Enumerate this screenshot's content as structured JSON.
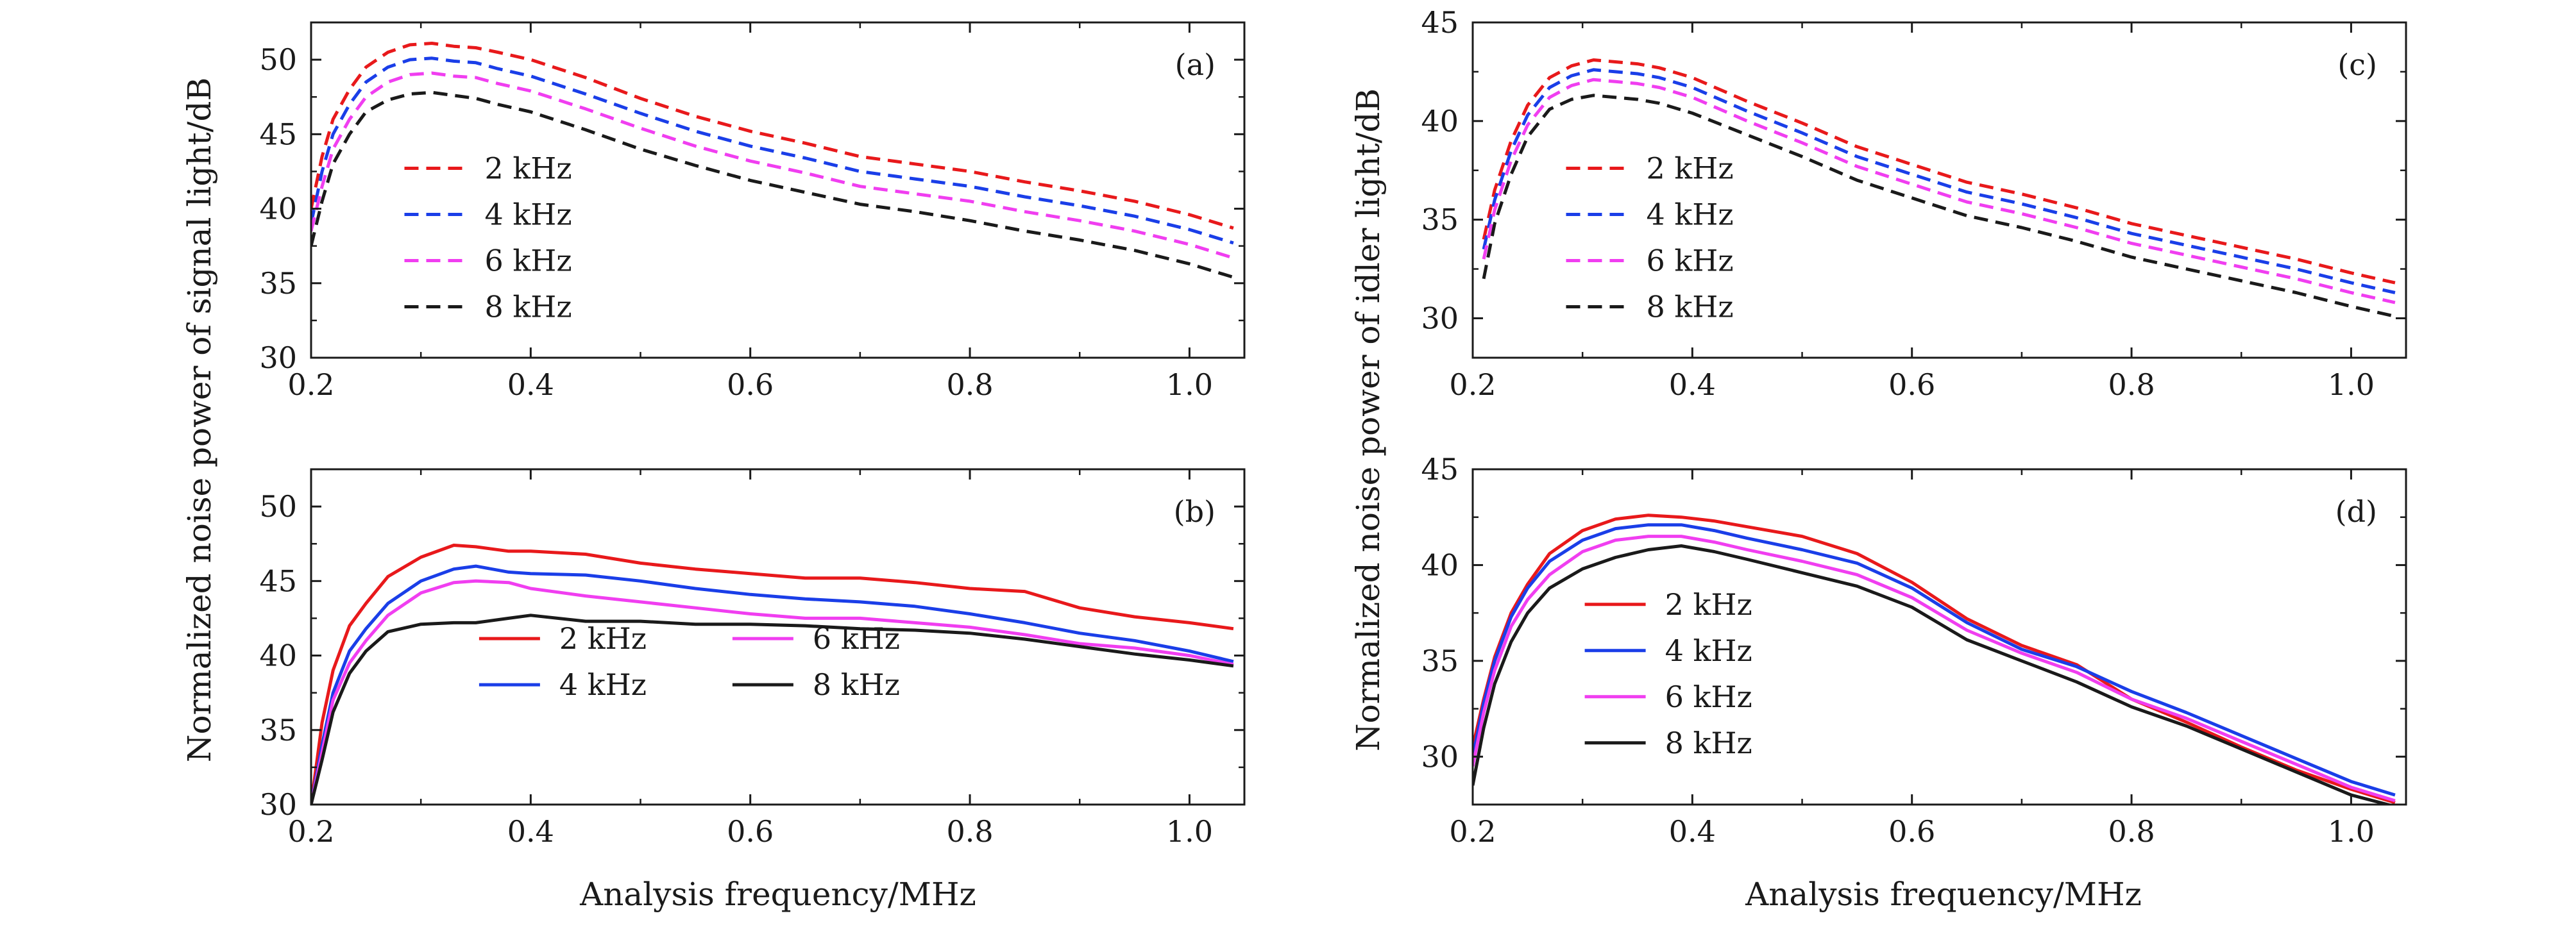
{
  "figure": {
    "ylabel_left": "Normalized noise power of signal light/dB",
    "ylabel_right": "Normalized noise power of idler light/dB",
    "xlabel_bottom_left": "Analysis frequency/MHz",
    "xlabel_bottom_right": "Analysis frequency/MHz"
  },
  "chart_data": [
    {
      "id": "a",
      "type": "line",
      "panel_label": "(a)",
      "line_style": "dashed",
      "xlim": [
        0.2,
        1.05
      ],
      "ylim": [
        30,
        52.5
      ],
      "xticks": [
        0.2,
        0.4,
        0.6,
        0.8,
        1.0
      ],
      "xtick_labels": [
        "0.2",
        "0.4",
        "0.6",
        "0.8",
        "1.0"
      ],
      "yticks": [
        30,
        35,
        40,
        45,
        50
      ],
      "ytick_labels": [
        "30",
        "35",
        "40",
        "45",
        "50"
      ],
      "legend_placement": "center-left",
      "x": [
        0.2,
        0.21,
        0.22,
        0.235,
        0.25,
        0.27,
        0.29,
        0.31,
        0.33,
        0.35,
        0.37,
        0.4,
        0.45,
        0.5,
        0.55,
        0.6,
        0.65,
        0.7,
        0.75,
        0.8,
        0.85,
        0.9,
        0.95,
        1.0,
        1.04
      ],
      "series": [
        {
          "name": "2 kHz",
          "color": "#e8191b",
          "values": [
            40,
            43.5,
            46,
            48,
            49.5,
            50.5,
            51,
            51.1,
            50.9,
            50.8,
            50.5,
            50.0,
            48.8,
            47.4,
            46.2,
            45.2,
            44.4,
            43.5,
            43.0,
            42.5,
            41.8,
            41.2,
            40.5,
            39.6,
            38.7
          ]
        },
        {
          "name": "4 kHz",
          "color": "#1a3ee8",
          "values": [
            39,
            42.5,
            45,
            47,
            48.5,
            49.5,
            50,
            50.1,
            49.9,
            49.8,
            49.4,
            48.9,
            47.7,
            46.4,
            45.2,
            44.2,
            43.4,
            42.5,
            42.0,
            41.5,
            40.8,
            40.2,
            39.5,
            38.6,
            37.7
          ]
        },
        {
          "name": "6 kHz",
          "color": "#f03ef0",
          "values": [
            38.5,
            41.5,
            44,
            46,
            47.5,
            48.5,
            49,
            49.1,
            48.9,
            48.8,
            48.4,
            47.9,
            46.7,
            45.4,
            44.2,
            43.2,
            42.4,
            41.5,
            41.0,
            40.5,
            39.8,
            39.2,
            38.5,
            37.6,
            36.7
          ]
        },
        {
          "name": "8 kHz",
          "color": "#1a1a1a",
          "values": [
            37.5,
            40.5,
            43,
            45,
            46.5,
            47.3,
            47.7,
            47.8,
            47.6,
            47.4,
            47.0,
            46.5,
            45.3,
            44.0,
            42.9,
            41.9,
            41.1,
            40.3,
            39.8,
            39.2,
            38.5,
            37.9,
            37.2,
            36.3,
            35.4
          ]
        }
      ]
    },
    {
      "id": "b",
      "type": "line",
      "panel_label": "(b)",
      "line_style": "solid",
      "xlim": [
        0.2,
        1.05
      ],
      "ylim": [
        30,
        52.5
      ],
      "xticks": [
        0.2,
        0.4,
        0.6,
        0.8,
        1.0
      ],
      "xtick_labels": [
        "0.2",
        "0.4",
        "0.6",
        "0.8",
        "1.0"
      ],
      "yticks": [
        30,
        35,
        40,
        45,
        50
      ],
      "ytick_labels": [
        "30",
        "35",
        "40",
        "45",
        "50"
      ],
      "legend_placement": "bottom-center",
      "x": [
        0.2,
        0.21,
        0.22,
        0.235,
        0.25,
        0.27,
        0.3,
        0.33,
        0.35,
        0.38,
        0.4,
        0.45,
        0.5,
        0.55,
        0.6,
        0.65,
        0.7,
        0.75,
        0.8,
        0.85,
        0.9,
        0.95,
        1.0,
        1.04
      ],
      "series": [
        {
          "name": "2 kHz",
          "color": "#e8191b",
          "values": [
            30,
            35.5,
            39,
            42,
            43.5,
            45.3,
            46.6,
            47.4,
            47.3,
            47.0,
            47.0,
            46.8,
            46.2,
            45.8,
            45.5,
            45.2,
            45.2,
            44.9,
            44.5,
            44.3,
            43.2,
            42.6,
            42.2,
            41.8
          ]
        },
        {
          "name": "4 kHz",
          "color": "#1a3ee8",
          "values": [
            30,
            34,
            37.5,
            40.3,
            41.8,
            43.5,
            45,
            45.8,
            46.0,
            45.6,
            45.5,
            45.4,
            45.0,
            44.5,
            44.1,
            43.8,
            43.6,
            43.3,
            42.8,
            42.2,
            41.5,
            41.0,
            40.3,
            39.6
          ]
        },
        {
          "name": "6 kHz",
          "color": "#f03ef0",
          "values": [
            30,
            33.5,
            37,
            39.5,
            41,
            42.7,
            44.2,
            44.9,
            45.0,
            44.9,
            44.5,
            44.0,
            43.6,
            43.2,
            42.8,
            42.5,
            42.5,
            42.2,
            41.9,
            41.4,
            40.8,
            40.5,
            40.0,
            39.4
          ]
        },
        {
          "name": "8 kHz",
          "color": "#1a1a1a",
          "values": [
            30,
            33,
            36.2,
            38.8,
            40.3,
            41.6,
            42.1,
            42.2,
            42.2,
            42.5,
            42.7,
            42.3,
            42.3,
            42.1,
            42.1,
            42.0,
            41.8,
            41.7,
            41.5,
            41.1,
            40.6,
            40.1,
            39.7,
            39.3
          ]
        }
      ]
    },
    {
      "id": "c",
      "type": "line",
      "panel_label": "(c)",
      "line_style": "dashed",
      "xlim": [
        0.2,
        1.05
      ],
      "ylim": [
        28,
        45
      ],
      "xticks": [
        0.2,
        0.4,
        0.6,
        0.8,
        1.0
      ],
      "xtick_labels": [
        "0.2",
        "0.4",
        "0.6",
        "0.8",
        "1.0"
      ],
      "yticks": [
        30,
        35,
        40,
        45
      ],
      "ytick_labels": [
        "30",
        "35",
        "40",
        "45"
      ],
      "legend_placement": "center-left",
      "x": [
        0.21,
        0.22,
        0.235,
        0.25,
        0.27,
        0.29,
        0.31,
        0.33,
        0.35,
        0.37,
        0.4,
        0.45,
        0.5,
        0.55,
        0.6,
        0.65,
        0.7,
        0.75,
        0.8,
        0.85,
        0.9,
        0.95,
        1.0,
        1.04
      ],
      "series": [
        {
          "name": "2 kHz",
          "color": "#e8191b",
          "values": [
            34,
            36.5,
            39,
            40.8,
            42.2,
            42.8,
            43.1,
            43.0,
            42.9,
            42.7,
            42.2,
            41.0,
            39.9,
            38.7,
            37.8,
            36.9,
            36.3,
            35.6,
            34.8,
            34.2,
            33.6,
            33.0,
            32.3,
            31.8
          ]
        },
        {
          "name": "4 kHz",
          "color": "#1a3ee8",
          "values": [
            33.5,
            36,
            38.5,
            40.3,
            41.7,
            42.3,
            42.6,
            42.5,
            42.4,
            42.2,
            41.7,
            40.5,
            39.4,
            38.2,
            37.3,
            36.4,
            35.8,
            35.1,
            34.3,
            33.7,
            33.1,
            32.5,
            31.8,
            31.3
          ]
        },
        {
          "name": "6 kHz",
          "color": "#f03ef0",
          "values": [
            33,
            35.5,
            38,
            39.8,
            41.2,
            41.8,
            42.1,
            42.0,
            41.9,
            41.7,
            41.2,
            40.0,
            38.9,
            37.7,
            36.8,
            35.9,
            35.3,
            34.6,
            33.8,
            33.2,
            32.6,
            32.0,
            31.3,
            30.8
          ]
        },
        {
          "name": "8 kHz",
          "color": "#1a1a1a",
          "values": [
            32,
            34.8,
            37.3,
            39.2,
            40.6,
            41.1,
            41.3,
            41.2,
            41.1,
            40.9,
            40.4,
            39.3,
            38.2,
            37.0,
            36.1,
            35.2,
            34.6,
            33.9,
            33.1,
            32.5,
            31.9,
            31.3,
            30.6,
            30.1
          ]
        }
      ]
    },
    {
      "id": "d",
      "type": "line",
      "panel_label": "(d)",
      "line_style": "solid",
      "xlim": [
        0.2,
        1.05
      ],
      "ylim": [
        27.5,
        45
      ],
      "xticks": [
        0.2,
        0.4,
        0.6,
        0.8,
        1.0
      ],
      "xtick_labels": [
        "0.2",
        "0.4",
        "0.6",
        "0.8",
        "1.0"
      ],
      "yticks": [
        30,
        35,
        40,
        45
      ],
      "ytick_labels": [
        "30",
        "35",
        "40",
        "45"
      ],
      "legend_placement": "bottom-left",
      "x": [
        0.2,
        0.21,
        0.22,
        0.235,
        0.25,
        0.27,
        0.3,
        0.33,
        0.36,
        0.39,
        0.42,
        0.45,
        0.5,
        0.55,
        0.6,
        0.65,
        0.7,
        0.75,
        0.8,
        0.85,
        0.9,
        0.95,
        1.0,
        1.04
      ],
      "series": [
        {
          "name": "2 kHz",
          "color": "#e8191b",
          "values": [
            30.5,
            33,
            35.2,
            37.5,
            39.0,
            40.6,
            41.8,
            42.4,
            42.6,
            42.5,
            42.3,
            42.0,
            41.5,
            40.6,
            39.1,
            37.2,
            35.8,
            34.8,
            33.0,
            31.8,
            30.5,
            29.3,
            28.3,
            27.6
          ]
        },
        {
          "name": "4 kHz",
          "color": "#1a3ee8",
          "values": [
            30.0,
            32.8,
            35,
            37.3,
            38.8,
            40.2,
            41.3,
            41.9,
            42.1,
            42.1,
            41.8,
            41.4,
            40.8,
            40.1,
            38.8,
            37.0,
            35.6,
            34.7,
            33.4,
            32.3,
            31.1,
            29.9,
            28.7,
            28.0
          ]
        },
        {
          "name": "6 kHz",
          "color": "#f03ef0",
          "values": [
            29.5,
            32.3,
            34.5,
            36.8,
            38.2,
            39.5,
            40.7,
            41.3,
            41.5,
            41.5,
            41.2,
            40.8,
            40.2,
            39.5,
            38.3,
            36.6,
            35.4,
            34.4,
            33.0,
            32.0,
            30.8,
            29.6,
            28.4,
            27.7
          ]
        },
        {
          "name": "8 kHz",
          "color": "#1a1a1a",
          "values": [
            28.5,
            31.5,
            33.8,
            36.0,
            37.5,
            38.8,
            39.8,
            40.4,
            40.8,
            41.0,
            40.7,
            40.3,
            39.6,
            38.9,
            37.8,
            36.1,
            35.0,
            33.9,
            32.6,
            31.6,
            30.4,
            29.2,
            28.0,
            27.4
          ]
        }
      ]
    }
  ]
}
